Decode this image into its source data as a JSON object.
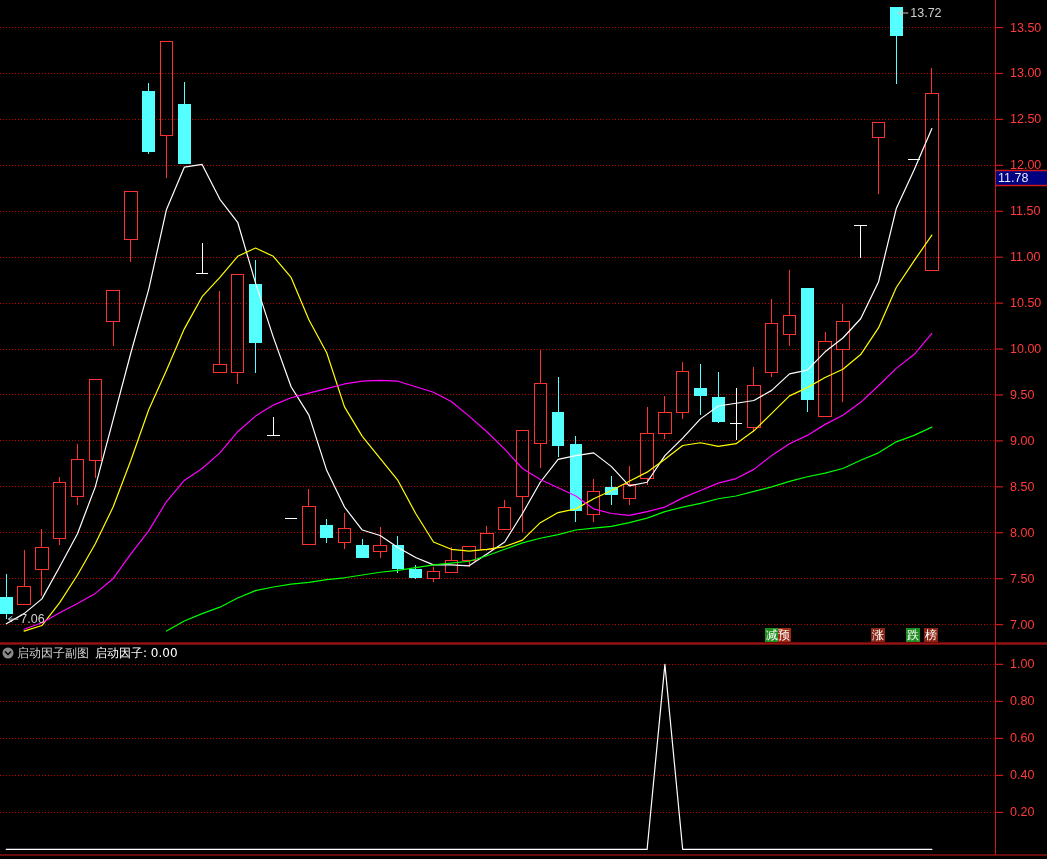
{
  "chart_data": [
    {
      "type": "candlestick",
      "categories": [
        null,
        null,
        null,
        null,
        null,
        null,
        null,
        null,
        null,
        null,
        null,
        null,
        null,
        null,
        null,
        null,
        null,
        null,
        null,
        null,
        null,
        null,
        null,
        null,
        null,
        null,
        null,
        null,
        null,
        null,
        null,
        null,
        null,
        null,
        null,
        null,
        null,
        null,
        null,
        null,
        null,
        null,
        null,
        null,
        null,
        null,
        null,
        null,
        null,
        null,
        null,
        null,
        null
      ],
      "ohlc": [
        [
          7.3,
          7.55,
          7.06,
          7.12
        ],
        [
          7.22,
          7.81,
          7.22,
          7.42
        ],
        [
          7.6,
          8.04,
          7.31,
          7.84
        ],
        [
          7.94,
          8.61,
          7.87,
          8.55
        ],
        [
          8.4,
          8.97,
          8.3,
          8.8
        ],
        [
          8.79,
          9.67,
          8.6,
          9.67
        ],
        [
          10.3,
          10.64,
          10.03,
          10.64
        ],
        [
          11.19,
          11.72,
          10.95,
          11.72
        ],
        [
          12.81,
          12.9,
          12.12,
          12.15
        ],
        [
          12.33,
          13.35,
          11.86,
          13.35
        ],
        [
          12.67,
          12.91,
          12.02,
          12.02
        ],
        [
          10.82,
          11.15,
          10.82,
          10.82
        ],
        [
          9.74,
          10.63,
          9.74,
          9.83
        ],
        [
          9.75,
          10.81,
          9.62,
          10.81
        ],
        [
          10.71,
          10.97,
          9.74,
          10.07
        ],
        [
          9.06,
          9.26,
          9.06,
          9.06
        ],
        [
          8.15,
          8.15,
          8.15,
          8.15
        ],
        [
          7.87,
          8.48,
          7.87,
          8.29
        ],
        [
          8.08,
          8.15,
          7.89,
          7.94
        ],
        [
          7.89,
          8.22,
          7.82,
          8.05
        ],
        [
          7.87,
          7.93,
          7.73,
          7.73
        ],
        [
          7.8,
          8.06,
          7.73,
          7.86
        ],
        [
          7.87,
          7.96,
          7.56,
          7.61
        ],
        [
          7.61,
          7.65,
          7.5,
          7.51
        ],
        [
          7.5,
          7.63,
          7.46,
          7.58
        ],
        [
          7.57,
          7.84,
          7.57,
          7.7
        ],
        [
          7.7,
          7.86,
          7.63,
          7.85
        ],
        [
          7.82,
          8.07,
          7.8,
          7.99
        ],
        [
          8.04,
          8.36,
          8.04,
          8.28
        ],
        [
          8.39,
          9.11,
          8.01,
          9.11
        ],
        [
          8.97,
          9.99,
          8.71,
          9.62
        ],
        [
          9.32,
          9.7,
          8.82,
          8.95
        ],
        [
          8.97,
          9.05,
          8.12,
          8.24
        ],
        [
          8.2,
          8.58,
          8.12,
          8.45
        ],
        [
          8.5,
          8.62,
          8.3,
          8.41
        ],
        [
          8.37,
          8.73,
          8.3,
          8.53
        ],
        [
          8.59,
          9.37,
          8.52,
          9.08
        ],
        [
          9.08,
          9.49,
          9.02,
          9.31
        ],
        [
          9.31,
          9.86,
          9.24,
          9.76
        ],
        [
          9.58,
          9.84,
          9.28,
          9.49
        ],
        [
          9.48,
          9.75,
          9.19,
          9.21
        ],
        [
          9.19,
          9.58,
          9.01,
          9.19
        ],
        [
          9.15,
          9.81,
          9.1,
          9.6
        ],
        [
          9.75,
          10.55,
          9.7,
          10.28
        ],
        [
          10.16,
          10.86,
          10.03,
          10.36
        ],
        [
          10.66,
          10.66,
          9.32,
          9.45
        ],
        [
          9.27,
          10.19,
          9.27,
          10.08
        ],
        [
          10.0,
          10.49,
          9.42,
          10.3
        ],
        [
          11.34,
          11.34,
          10.99,
          11.34
        ],
        [
          12.3,
          12.47,
          11.69,
          12.47
        ],
        [
          13.72,
          13.72,
          12.89,
          13.41
        ],
        [
          12.06,
          12.06,
          12.06,
          12.06
        ],
        [
          10.86,
          13.06,
          10.86,
          12.78
        ]
      ],
      "colors": [
        "#54ffff",
        "#ff3232",
        "#ff3232",
        "#ff3232",
        "#ff3232",
        "#ff3232",
        "#ff3232",
        "#ff3232",
        "#54ffff",
        "#ff3232",
        "#54ffff",
        "#ffffff",
        "#ff3232",
        "#ff3232",
        "#54ffff",
        "#ffffff",
        "#ffffff",
        "#ff3232",
        "#54ffff",
        "#ff3232",
        "#54ffff",
        "#ff3232",
        "#54ffff",
        "#54ffff",
        "#ff3232",
        "#ff3232",
        "#ff3232",
        "#ff3232",
        "#ff3232",
        "#ff3232",
        "#ff3232",
        "#54ffff",
        "#54ffff",
        "#ff3232",
        "#54ffff",
        "#ff3232",
        "#ff3232",
        "#ff3232",
        "#ff3232",
        "#54ffff",
        "#54ffff",
        "#ffffff",
        "#ff3232",
        "#ff3232",
        "#ff3232",
        "#54ffff",
        "#ff3232",
        "#ff3232",
        "#ffffff",
        "#ff3232",
        "#54ffff",
        "#ffffff",
        "#ff3232"
      ],
      "series": [
        {
          "type": "line",
          "color": "#ffffff",
          "values": [
            7.01,
            7.12,
            7.28,
            7.63,
            7.99,
            8.5,
            9.23,
            9.96,
            10.65,
            11.52,
            11.98,
            12.01,
            11.63,
            11.38,
            10.72,
            10.13,
            9.59,
            9.28,
            8.68,
            8.28,
            8.03,
            7.97,
            7.84,
            7.73,
            7.65,
            7.65,
            7.64,
            7.77,
            7.9,
            8.21,
            8.55,
            8.8,
            8.84,
            8.87,
            8.72,
            8.51,
            8.55,
            8.84,
            9.03,
            9.24,
            9.38,
            9.41,
            9.44,
            9.55,
            9.73,
            9.77,
            9.97,
            10.12,
            10.33,
            10.73,
            11.53,
            11.95,
            12.4
          ]
        },
        {
          "type": "line",
          "color": "#ffff00",
          "values": [
            null,
            6.93,
            6.99,
            7.24,
            7.54,
            7.88,
            8.28,
            8.79,
            9.34,
            9.77,
            10.22,
            10.57,
            10.78,
            11.01,
            11.1,
            11.01,
            10.78,
            10.32,
            9.96,
            9.37,
            9.05,
            8.81,
            8.57,
            8.21,
            7.9,
            7.82,
            7.8,
            7.82,
            7.85,
            7.92,
            8.11,
            8.22,
            8.26,
            8.37,
            8.46,
            8.56,
            8.66,
            8.8,
            8.95,
            8.98,
            8.94,
            8.97,
            9.11,
            9.3,
            9.49,
            9.58,
            9.69,
            9.78,
            9.94,
            10.23,
            10.67,
            10.96,
            11.24
          ]
        },
        {
          "type": "line",
          "color": "#ff00ff",
          "values": [
            null,
            6.95,
            7.02,
            7.13,
            7.23,
            7.34,
            7.5,
            7.77,
            8.02,
            8.34,
            8.57,
            8.7,
            8.87,
            9.1,
            9.27,
            9.39,
            9.47,
            9.52,
            9.57,
            9.62,
            9.65,
            9.66,
            9.65,
            9.59,
            9.53,
            9.43,
            9.27,
            9.1,
            8.91,
            8.7,
            8.58,
            8.49,
            8.4,
            8.26,
            8.21,
            8.19,
            8.23,
            8.28,
            8.38,
            8.46,
            8.54,
            8.59,
            8.69,
            8.84,
            8.97,
            9.06,
            9.18,
            9.28,
            9.42,
            9.6,
            9.79,
            9.94,
            10.17
          ]
        },
        {
          "type": "line",
          "color": "#00ff00",
          "values": [
            null,
            null,
            null,
            null,
            null,
            null,
            null,
            null,
            null,
            6.93,
            7.04,
            7.12,
            7.19,
            7.29,
            7.37,
            7.41,
            7.44,
            7.46,
            7.49,
            7.51,
            7.54,
            7.57,
            7.59,
            7.62,
            7.65,
            7.67,
            7.69,
            7.75,
            7.82,
            7.89,
            7.94,
            7.98,
            8.03,
            8.05,
            8.07,
            8.11,
            8.16,
            8.23,
            8.28,
            8.32,
            8.37,
            8.4,
            8.45,
            8.5,
            8.56,
            8.61,
            8.65,
            8.7,
            8.79,
            8.87,
            8.99,
            9.06,
            9.15
          ]
        }
      ],
      "ylim": [
        6.8,
        13.8
      ],
      "yticks": [
        {
          "value": 7,
          "label": "7.00"
        },
        {
          "value": 7.5,
          "label": "7.50"
        },
        {
          "value": 8,
          "label": "8.00"
        },
        {
          "value": 8.5,
          "label": "8.50"
        },
        {
          "value": 9,
          "label": "9.00"
        },
        {
          "value": 9.5,
          "label": "9.50"
        },
        {
          "value": 10,
          "label": "10.00"
        },
        {
          "value": 10.5,
          "label": "10.50"
        },
        {
          "value": 11,
          "label": "11.00"
        },
        {
          "value": 11.5,
          "label": "11.50"
        },
        {
          "value": 12,
          "label": "12.00"
        },
        {
          "value": 12.5,
          "label": "12.50"
        },
        {
          "value": 13,
          "label": "13.00"
        },
        {
          "value": 13.5,
          "label": "13.50"
        }
      ],
      "grid": "y",
      "ref_lines": [
        {
          "axis": "y",
          "value": 11.78,
          "label": "11.78"
        }
      ],
      "annotations": [
        "13.72",
        "7.06",
        "减预",
        "涨",
        "跌",
        "榜"
      ]
    },
    {
      "type": "line",
      "title": "启动因子副图",
      "subtitle": "启动因子: 0.00",
      "categories": [
        null,
        null,
        null,
        null,
        null,
        null,
        null,
        null,
        null,
        null,
        null,
        null,
        null,
        null,
        null,
        null,
        null,
        null,
        null,
        null,
        null,
        null,
        null,
        null,
        null,
        null,
        null,
        null,
        null,
        null,
        null,
        null,
        null,
        null,
        null,
        null,
        null,
        null,
        null,
        null,
        null,
        null,
        null,
        null,
        null,
        null,
        null,
        null,
        null,
        null,
        null,
        null,
        null
      ],
      "series": [
        {
          "color": "#ffffff",
          "values": [
            0,
            0,
            0,
            0,
            0,
            0,
            0,
            0,
            0,
            0,
            0,
            0,
            0,
            0,
            0,
            0,
            0,
            0,
            0,
            0,
            0,
            0,
            0,
            0,
            0,
            0,
            0,
            0,
            0,
            0,
            0,
            0,
            0,
            0,
            0,
            0,
            0,
            1,
            0,
            0,
            0,
            0,
            0,
            0,
            0,
            0,
            0,
            0,
            0,
            0,
            0,
            0,
            0
          ]
        }
      ],
      "ylim": [
        -0.03,
        1.11
      ],
      "yticks": [
        {
          "value": 0.2,
          "label": "0.20"
        },
        {
          "value": 0.4,
          "label": "0.40"
        },
        {
          "value": 0.6,
          "label": "0.60"
        },
        {
          "value": 0.8,
          "label": "0.80"
        },
        {
          "value": 1,
          "label": "1.00"
        }
      ],
      "grid": "y"
    }
  ]
}
